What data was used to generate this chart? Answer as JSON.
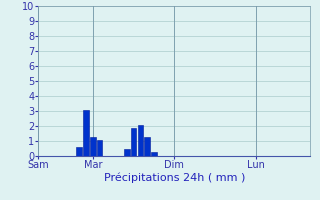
{
  "xlabel": "Précipitations 24h ( mm )",
  "ylim": [
    0,
    10
  ],
  "yticks": [
    0,
    1,
    2,
    3,
    4,
    5,
    6,
    7,
    8,
    9,
    10
  ],
  "background_color": "#dff2f2",
  "grid_color": "#aacccc",
  "bar_color": "#0033cc",
  "bar_edge_color": "#001a99",
  "xlabel_color": "#2222bb",
  "tick_color": "#3333aa",
  "vline_color": "#7799aa",
  "x_tick_labels": [
    "Sam",
    "Mar",
    "Dim",
    "Lun"
  ],
  "x_tick_positions": [
    0,
    48,
    120,
    192
  ],
  "xlim": [
    0,
    240
  ],
  "bar_positions": [
    36,
    42,
    48,
    54,
    78,
    84,
    90,
    96,
    102
  ],
  "bar_heights": [
    0.6,
    3.1,
    1.3,
    1.1,
    0.5,
    1.9,
    2.1,
    1.3,
    0.3
  ],
  "bar_width": 5.0
}
